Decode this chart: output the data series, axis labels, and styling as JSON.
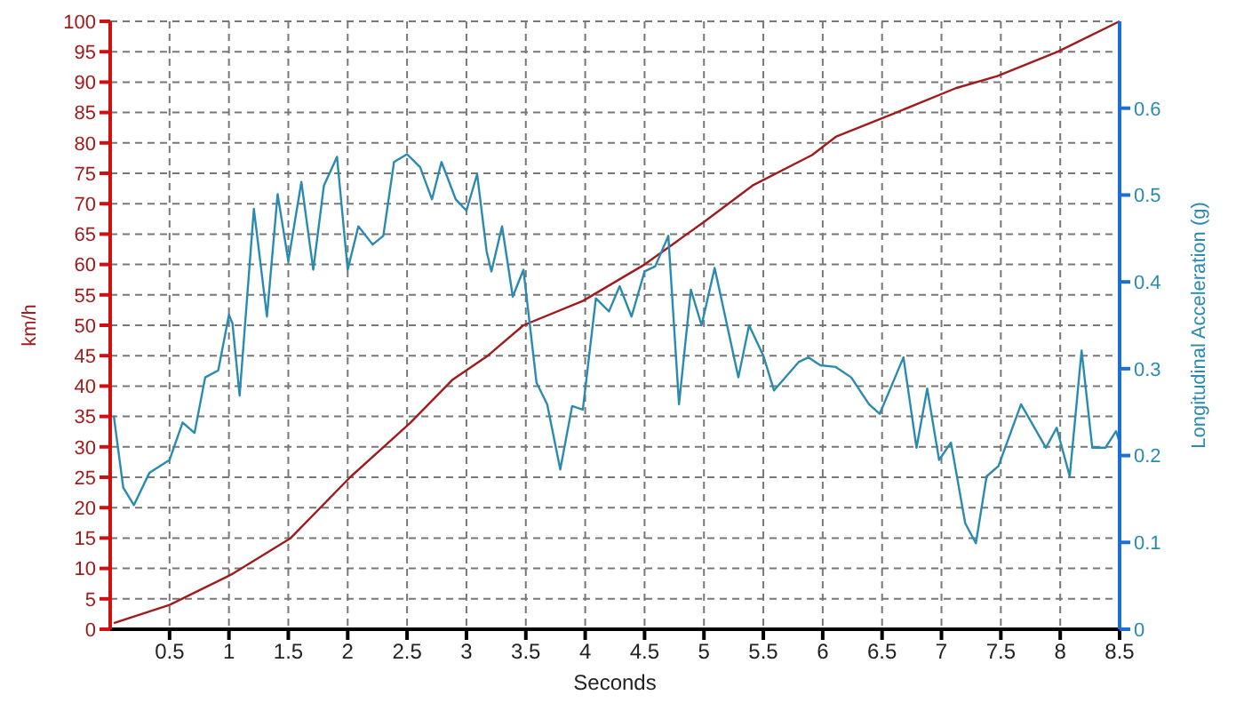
{
  "chart_data": {
    "type": "line",
    "xlabel": "Seconds",
    "ylabel": "km/h",
    "y2label": "Longitudinal Acceleration (g)",
    "xlim": [
      0,
      8.5
    ],
    "xticks": [
      0.5,
      1,
      1.5,
      2,
      2.5,
      3,
      3.5,
      4,
      4.5,
      5,
      5.5,
      6,
      6.5,
      7,
      7.5,
      8,
      8.5
    ],
    "ylim": [
      0,
      100
    ],
    "yticks": [
      0,
      5,
      10,
      15,
      20,
      25,
      30,
      35,
      40,
      45,
      50,
      55,
      60,
      65,
      70,
      75,
      80,
      85,
      90,
      95,
      100
    ],
    "y2lim": [
      0,
      0.7
    ],
    "y2ticks": [
      0,
      0.1,
      0.2,
      0.3,
      0.4,
      0.5,
      0.6
    ],
    "grid": true,
    "marker": "none",
    "line_style": "solid",
    "series": [
      {
        "color": "#a01c1c",
        "x": [
          0.03,
          0.5,
          1.02,
          1.52,
          2.02,
          2.53,
          2.88,
          3.18,
          3.48,
          3.98,
          4.5,
          5.0,
          5.41,
          5.91,
          6.11,
          6.62,
          7.12,
          7.47,
          7.98,
          8.5
        ],
        "values": [
          1,
          4,
          9,
          15,
          25,
          34,
          41,
          45,
          50,
          54,
          60,
          67,
          73,
          78,
          81,
          85,
          89,
          91,
          95,
          100
        ]
      },
      {
        "color": "#2a8ab0",
        "axis": "y2",
        "x": [
          0.03,
          0.11,
          0.2,
          0.33,
          0.5,
          0.61,
          0.71,
          0.8,
          0.91,
          1.0,
          1.03,
          1.09,
          1.21,
          1.32,
          1.41,
          1.5,
          1.61,
          1.71,
          1.8,
          1.91,
          2.0,
          2.09,
          2.21,
          2.3,
          2.39,
          2.5,
          2.61,
          2.71,
          2.79,
          2.91,
          3.0,
          3.09,
          3.17,
          3.21,
          3.3,
          3.39,
          3.48,
          3.59,
          3.68,
          3.79,
          3.89,
          3.98,
          4.09,
          4.2,
          4.29,
          4.39,
          4.5,
          4.59,
          4.7,
          4.79,
          4.89,
          4.98,
          5.09,
          5.29,
          5.38,
          5.5,
          5.59,
          5.8,
          5.88,
          5.98,
          6.11,
          6.24,
          6.39,
          6.48,
          6.68,
          6.79,
          6.88,
          6.98,
          7.08,
          7.2,
          7.29,
          7.38,
          7.48,
          7.67,
          7.88,
          7.97,
          8.08,
          8.18,
          8.27,
          8.38,
          8.47,
          8.5
        ],
        "values": [
          0.246,
          0.163,
          0.143,
          0.18,
          0.195,
          0.238,
          0.226,
          0.29,
          0.298,
          0.362,
          0.352,
          0.269,
          0.484,
          0.36,
          0.501,
          0.424,
          0.515,
          0.414,
          0.511,
          0.544,
          0.414,
          0.464,
          0.443,
          0.453,
          0.538,
          0.547,
          0.532,
          0.495,
          0.538,
          0.495,
          0.482,
          0.524,
          0.435,
          0.412,
          0.464,
          0.383,
          0.414,
          0.284,
          0.259,
          0.184,
          0.257,
          0.253,
          0.381,
          0.366,
          0.395,
          0.36,
          0.412,
          0.418,
          0.453,
          0.259,
          0.391,
          0.35,
          0.416,
          0.29,
          0.35,
          0.315,
          0.275,
          0.308,
          0.313,
          0.304,
          0.302,
          0.29,
          0.259,
          0.248,
          0.313,
          0.209,
          0.277,
          0.195,
          0.215,
          0.122,
          0.099,
          0.176,
          0.188,
          0.259,
          0.209,
          0.232,
          0.176,
          0.321,
          0.209,
          0.209,
          0.228,
          0.215
        ]
      }
    ]
  }
}
